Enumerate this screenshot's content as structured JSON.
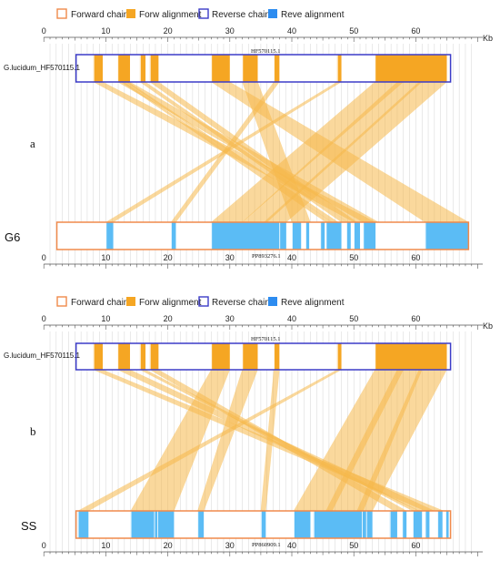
{
  "colors": {
    "forward_chain": "#f08a4b",
    "forward_align": "#f5a623",
    "reverse_chain": "#3c3cc8",
    "reverse_align": "#5bbcf5",
    "grid": "#d4d4d4",
    "axis": "#555555",
    "link": "#f6b84a"
  },
  "legend": {
    "forward_chain": "Forward chain",
    "forward_align": "Forw alignment",
    "reverse_chain": "Reverse chain",
    "reverse_align": "Reve alignment"
  },
  "axis_unit": "Kb",
  "panels": [
    {
      "letter": "a",
      "top": {
        "label": "G.lucidum_HF570115.1",
        "accession": "HF570115.1",
        "start": 5.2,
        "end": 65.6,
        "blocks": [
          [
            8.0,
            9.5
          ],
          [
            11.9,
            13.9
          ],
          [
            15.5,
            16.4
          ],
          [
            17.1,
            18.5
          ],
          [
            27.0,
            30.0
          ],
          [
            32.0,
            34.5
          ],
          [
            37.1,
            38.0
          ],
          [
            47.3,
            48.0
          ],
          [
            53.4,
            65.0
          ]
        ]
      },
      "bottom": {
        "label": "G6",
        "accession": "PP893276.1",
        "start": 2.1,
        "end": 68.5,
        "blocks": [
          [
            10.0,
            11.2
          ],
          [
            20.5,
            21.3
          ],
          [
            27.0,
            38.0
          ],
          [
            38.0,
            39.1
          ],
          [
            40.0,
            41.5
          ],
          [
            42.2,
            42.8
          ],
          [
            44.6,
            45.3
          ],
          [
            45.5,
            48.0
          ],
          [
            48.8,
            49.5
          ],
          [
            50.0,
            51.0
          ],
          [
            51.5,
            53.5
          ],
          [
            61.5,
            68.5
          ]
        ]
      },
      "links": [
        [
          [
            8.0,
            9.5
          ],
          [
            50.0,
            53.5
          ]
        ],
        [
          [
            11.9,
            13.9
          ],
          [
            51.5,
            54.0
          ]
        ],
        [
          [
            12.5,
            13.0
          ],
          [
            45.5,
            46.5
          ]
        ],
        [
          [
            13.2,
            13.6
          ],
          [
            46.5,
            47.5
          ]
        ],
        [
          [
            15.5,
            16.4
          ],
          [
            48.0,
            49.0
          ]
        ],
        [
          [
            17.1,
            18.5
          ],
          [
            49.0,
            50.5
          ]
        ],
        [
          [
            27.0,
            30.0
          ],
          [
            61.5,
            68.5
          ]
        ],
        [
          [
            32.0,
            34.5
          ],
          [
            40.0,
            43.0
          ]
        ],
        [
          [
            37.1,
            38.0
          ],
          [
            20.5,
            21.3
          ]
        ],
        [
          [
            47.3,
            48.0
          ],
          [
            10.0,
            11.2
          ]
        ],
        [
          [
            53.4,
            58.0
          ],
          [
            27.0,
            32.0
          ]
        ],
        [
          [
            57.0,
            61.0
          ],
          [
            32.0,
            36.0
          ]
        ],
        [
          [
            60.5,
            65.0
          ],
          [
            35.5,
            39.1
          ]
        ]
      ]
    },
    {
      "letter": "b",
      "top": {
        "label": "G.lucidum_HF570115.1",
        "accession": "HF570115.1",
        "start": 5.2,
        "end": 65.6,
        "blocks": [
          [
            8.0,
            9.5
          ],
          [
            11.9,
            13.9
          ],
          [
            15.5,
            16.4
          ],
          [
            17.1,
            18.5
          ],
          [
            27.0,
            30.0
          ],
          [
            32.0,
            34.5
          ],
          [
            37.1,
            38.0
          ],
          [
            47.3,
            48.0
          ],
          [
            53.4,
            65.0
          ]
        ]
      },
      "bottom": {
        "label": "SS",
        "accession": "PP860909.1",
        "start": 5.2,
        "end": 65.6,
        "blocks": [
          [
            5.5,
            7.2
          ],
          [
            14.0,
            17.8
          ],
          [
            17.8,
            18.3
          ],
          [
            18.3,
            21.0
          ],
          [
            24.8,
            25.8
          ],
          [
            35.0,
            35.8
          ],
          [
            40.3,
            43.0
          ],
          [
            43.5,
            51.3
          ],
          [
            51.3,
            52.0
          ],
          [
            52.0,
            53.0
          ],
          [
            55.8,
            57.0
          ],
          [
            57.8,
            58.5
          ],
          [
            59.5,
            61.0
          ],
          [
            61.5,
            62.2
          ],
          [
            63.5,
            64.3
          ],
          [
            64.8,
            65.3
          ]
        ]
      },
      "links": [
        [
          [
            8.0,
            9.5
          ],
          [
            61.5,
            64.5
          ]
        ],
        [
          [
            11.9,
            13.9
          ],
          [
            60.5,
            63.0
          ]
        ],
        [
          [
            15.5,
            16.4
          ],
          [
            59.5,
            60.5
          ]
        ],
        [
          [
            17.1,
            18.5
          ],
          [
            56.5,
            58.5
          ]
        ],
        [
          [
            27.0,
            30.0
          ],
          [
            14.0,
            21.0
          ]
        ],
        [
          [
            32.0,
            34.5
          ],
          [
            24.8,
            25.8
          ]
        ],
        [
          [
            37.1,
            38.0
          ],
          [
            35.0,
            35.8
          ]
        ],
        [
          [
            47.3,
            48.0
          ],
          [
            5.5,
            7.2
          ]
        ],
        [
          [
            53.4,
            58.0
          ],
          [
            40.3,
            46.5
          ]
        ],
        [
          [
            57.0,
            61.0
          ],
          [
            45.5,
            51.5
          ]
        ],
        [
          [
            60.5,
            65.0
          ],
          [
            50.5,
            53.0
          ]
        ]
      ]
    }
  ]
}
